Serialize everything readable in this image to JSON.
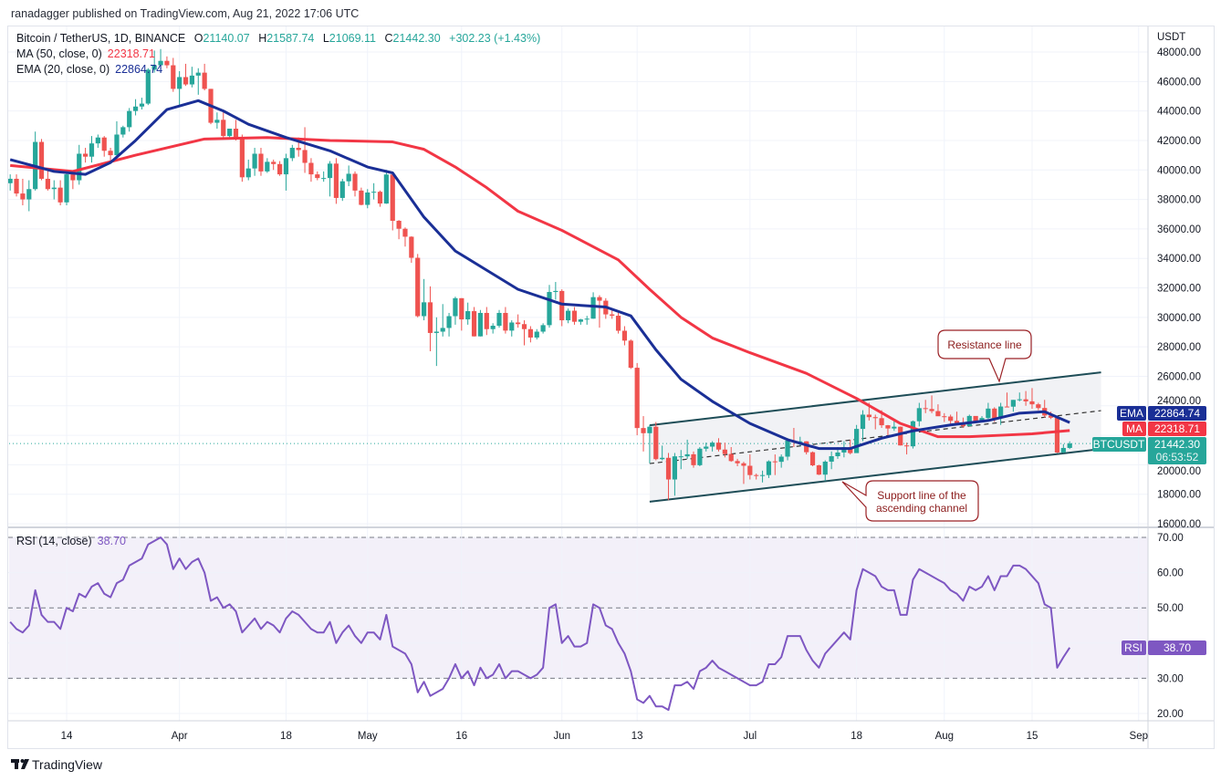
{
  "header": {
    "publisher_line": "ranadagger published on TradingView.com, Aug 21, 2022 17:06 UTC"
  },
  "legend": {
    "symbol": "Bitcoin / TetherUS, 1D, BINANCE",
    "open_label": "O",
    "open": "21140.07",
    "high_label": "H",
    "high": "21587.74",
    "low_label": "L",
    "low": "21069.11",
    "close_label": "C",
    "close": "21442.30",
    "change": "+302.23 (+1.43%)",
    "ma_label": "MA (50, close, 0)",
    "ma_value": "22318.71",
    "ema_label": "EMA (20, close, 0)",
    "ema_value": "22864.74"
  },
  "rsi_legend": {
    "label": "RSI (14, close)",
    "value": "38.70"
  },
  "price_axis": {
    "currency": "USDT",
    "ticks": [
      "48000.00",
      "46000.00",
      "44000.00",
      "42000.00",
      "40000.00",
      "38000.00",
      "36000.00",
      "34000.00",
      "32000.00",
      "30000.00",
      "28000.00",
      "26000.00",
      "24000.00",
      "20000.00",
      "18000.00",
      "16000.00"
    ]
  },
  "rsi_axis": {
    "ticks": [
      "70.00",
      "60.00",
      "50.00",
      "30.00",
      "20.00"
    ]
  },
  "time_axis": {
    "labels": [
      {
        "text": "14",
        "date": "2022-03-14"
      },
      {
        "text": "Apr",
        "date": "2022-04-01"
      },
      {
        "text": "18",
        "date": "2022-04-18"
      },
      {
        "text": "May",
        "date": "2022-05-01"
      },
      {
        "text": "16",
        "date": "2022-05-16"
      },
      {
        "text": "Jun",
        "date": "2022-06-01"
      },
      {
        "text": "13",
        "date": "2022-06-13"
      },
      {
        "text": "Jul",
        "date": "2022-07-01"
      },
      {
        "text": "18",
        "date": "2022-07-18"
      },
      {
        "text": "Aug",
        "date": "2022-08-01"
      },
      {
        "text": "15",
        "date": "2022-08-15"
      },
      {
        "text": "Sep",
        "date": "2022-09-01"
      }
    ]
  },
  "badges": {
    "ema": {
      "label": "EMA",
      "value": "22864.74"
    },
    "ma": {
      "label": "MA",
      "value": "22318.71"
    },
    "price": {
      "label": "BTCUSDT",
      "value": "21442.30",
      "countdown": "06:53:52"
    },
    "rsi": {
      "label": "RSI",
      "value": "38.70"
    }
  },
  "annotations": {
    "resistance": "Resistance line",
    "support_line1": "Support line of the",
    "support_line2": "ascending channel"
  },
  "footer": {
    "brand": "TradingView"
  },
  "colors": {
    "up": "#26a69a",
    "down": "#ef5350",
    "ma50": "#f23645",
    "ema20": "#1a2f96",
    "rsi": "#7e57c2",
    "channel": "#1e4d57",
    "annotation": "#9b2226"
  },
  "chart_data": {
    "type": "candlestick",
    "symbol": "BTCUSDT",
    "interval": "1D",
    "ylim": [
      16000,
      49000
    ],
    "grid": true,
    "candles": {
      "start_date": "2022-03-05",
      "open": [
        39100,
        39400,
        38400,
        38000,
        38700,
        41900,
        39400,
        38700,
        38800,
        37800,
        39700,
        39300,
        41100,
        40900,
        41800,
        42200,
        41300,
        41000,
        42400,
        42900,
        44000,
        44300,
        44500,
        46800,
        47100,
        47400,
        47100,
        45500,
        46300,
        45800,
        46400,
        46600,
        45500,
        43200,
        43400,
        42300,
        42800,
        42200,
        39500,
        40100,
        41100,
        39900,
        40550,
        40400,
        39700,
        40800,
        41500,
        41350,
        40480,
        39700,
        39450,
        39450,
        40430,
        38100,
        39230,
        39740,
        38600,
        37630,
        38470,
        38520,
        37720,
        39690,
        36550,
        36010,
        35470,
        34040,
        30080,
        31020,
        28940,
        29030,
        29280,
        30080,
        31300,
        29860,
        30420,
        28710,
        30300,
        29200,
        29430,
        30300,
        29100,
        29650,
        29540,
        29200,
        28630,
        29030,
        29470,
        31720,
        31790,
        29800,
        30450,
        29700,
        29860,
        29910,
        31370,
        31130,
        30200,
        30110,
        29090,
        28420,
        26580,
        22490,
        22140,
        22580,
        20380,
        20470,
        19000,
        20570,
        20570,
        20710,
        19970,
        21090,
        21230,
        21500,
        21030,
        20730,
        20250,
        20100,
        19930,
        19300,
        19240,
        19300,
        20230,
        20200,
        20550,
        21640,
        21590,
        21590,
        20850,
        19960,
        19330,
        20210,
        20580,
        20830,
        21190,
        20790,
        22430,
        23400,
        23230,
        23160,
        22680,
        22460,
        22580,
        21310,
        21250,
        22950,
        23840,
        23780,
        23640,
        23290,
        23270,
        22980,
        22820,
        22620,
        23310,
        22950,
        23170,
        23810,
        23150,
        23950,
        23940,
        24400,
        24440,
        24300,
        24100,
        23850,
        23340,
        23190,
        20830,
        21140.07
      ],
      "high": [
        39700,
        39700,
        39400,
        39300,
        42600,
        42100,
        40000,
        39300,
        39300,
        39900,
        39900,
        41700,
        41500,
        42300,
        42400,
        42300,
        41500,
        43300,
        43000,
        44200,
        44800,
        44900,
        46900,
        48100,
        48200,
        47700,
        47600,
        46700,
        47200,
        47000,
        46900,
        47200,
        45500,
        43900,
        43900,
        42800,
        43400,
        42400,
        40700,
        41500,
        41500,
        40800,
        40700,
        40600,
        41100,
        41700,
        42200,
        42900,
        40800,
        39900,
        39900,
        40600,
        40800,
        39400,
        40300,
        39900,
        38800,
        38700,
        39100,
        38600,
        40000,
        39800,
        36600,
        36100,
        35500,
        34300,
        32600,
        32100,
        30000,
        30900,
        30300,
        31400,
        31300,
        31000,
        30700,
        30500,
        30700,
        29600,
        30500,
        30700,
        29800,
        30200,
        29800,
        29400,
        29200,
        29600,
        32200,
        32400,
        31900,
        30600,
        30700,
        29900,
        30100,
        31700,
        31500,
        31300,
        30600,
        30300,
        29400,
        28500,
        26900,
        23300,
        22700,
        22900,
        21300,
        20800,
        20800,
        21000,
        21700,
        20900,
        21200,
        21500,
        21600,
        21800,
        21500,
        21200,
        20400,
        20200,
        20700,
        19400,
        19600,
        20300,
        20700,
        20700,
        21800,
        22500,
        21900,
        21600,
        20900,
        20000,
        20300,
        20900,
        21200,
        21600,
        21700,
        22700,
        23700,
        24200,
        23400,
        23700,
        22700,
        23000,
        22600,
        21500,
        23000,
        24200,
        24400,
        24700,
        24100,
        23500,
        23400,
        23600,
        23200,
        23400,
        23300,
        23300,
        24200,
        23900,
        24200,
        24900,
        24400,
        24900,
        25000,
        25200,
        24200,
        24400,
        23600,
        23200,
        21400,
        21587.74
      ],
      "low": [
        38600,
        38200,
        37600,
        37200,
        38600,
        39300,
        38600,
        38000,
        37600,
        37600,
        38700,
        39000,
        40500,
        40500,
        41500,
        40900,
        40500,
        40900,
        42200,
        42600,
        43700,
        44100,
        44400,
        46600,
        46600,
        46900,
        45300,
        44300,
        45700,
        45600,
        45100,
        45400,
        43100,
        42800,
        42200,
        42100,
        42000,
        39200,
        39300,
        39600,
        39600,
        39800,
        40000,
        39600,
        38600,
        40600,
        40900,
        39800,
        39200,
        39300,
        39200,
        38200,
        37700,
        37900,
        38900,
        38200,
        37600,
        37400,
        38000,
        37500,
        37700,
        35900,
        35300,
        34800,
        33700,
        30000,
        29800,
        27700,
        26700,
        28700,
        28700,
        29500,
        29100,
        29500,
        28700,
        28700,
        28800,
        28900,
        29300,
        28900,
        28700,
        29300,
        28100,
        28300,
        28500,
        28900,
        29300,
        31200,
        29400,
        29600,
        29500,
        29500,
        29500,
        29900,
        29300,
        29900,
        29900,
        28900,
        28100,
        26500,
        22000,
        20900,
        20100,
        20300,
        20300,
        17600,
        17900,
        19700,
        20400,
        19800,
        19900,
        20900,
        20900,
        20900,
        20500,
        20200,
        19900,
        18700,
        19000,
        19000,
        18800,
        19100,
        19300,
        19800,
        20300,
        21200,
        21300,
        20700,
        19900,
        19300,
        18900,
        19700,
        20400,
        20500,
        20700,
        20800,
        21600,
        23000,
        22400,
        22500,
        22000,
        22300,
        21300,
        20700,
        21100,
        22600,
        23500,
        23500,
        23300,
        22900,
        22700,
        22700,
        22500,
        22600,
        22900,
        22900,
        23100,
        22900,
        22700,
        23900,
        23600,
        24300,
        24000,
        23800,
        23700,
        23200,
        23100,
        20800,
        20800,
        21069.11
      ],
      "close": [
        39400,
        38400,
        38000,
        38700,
        41900,
        39400,
        38700,
        38800,
        37800,
        39700,
        39300,
        41100,
        40900,
        41800,
        42200,
        41300,
        41000,
        42400,
        42900,
        44000,
        44300,
        44500,
        46800,
        47100,
        47400,
        47100,
        45500,
        46300,
        45800,
        46400,
        46600,
        45500,
        43200,
        43400,
        42300,
        42800,
        42200,
        39500,
        40100,
        41100,
        39900,
        40550,
        40400,
        39700,
        40800,
        41500,
        41350,
        40480,
        39700,
        39450,
        39450,
        40430,
        38100,
        39230,
        39740,
        38600,
        37630,
        38470,
        38520,
        37720,
        39690,
        36550,
        36010,
        35470,
        34040,
        30080,
        31020,
        28940,
        29030,
        29280,
        30080,
        31300,
        29860,
        30420,
        28710,
        30300,
        29200,
        29430,
        30300,
        29100,
        29650,
        29540,
        29200,
        28630,
        29030,
        29470,
        31720,
        31790,
        29800,
        30450,
        29700,
        29860,
        29910,
        31370,
        31130,
        30200,
        30110,
        29090,
        28420,
        26580,
        22490,
        22140,
        22580,
        20380,
        20470,
        19000,
        20570,
        20570,
        20710,
        19970,
        21090,
        21230,
        21500,
        21030,
        20730,
        20250,
        20100,
        19930,
        19300,
        19240,
        19300,
        20230,
        20200,
        20550,
        21640,
        21590,
        21590,
        20850,
        19960,
        19330,
        20210,
        20580,
        20830,
        21190,
        20790,
        22430,
        23400,
        23230,
        23160,
        22680,
        22460,
        22580,
        21310,
        21250,
        22950,
        23840,
        23780,
        23640,
        23290,
        23270,
        22980,
        22820,
        22620,
        23310,
        22950,
        23170,
        23810,
        23150,
        23950,
        23940,
        24400,
        24440,
        24300,
        24100,
        23850,
        23340,
        23190,
        20830,
        21140,
        21442.3
      ]
    },
    "ema20": [
      [
        "2022-03-05",
        40700
      ],
      [
        "2022-03-12",
        39900
      ],
      [
        "2022-03-17",
        39700
      ],
      [
        "2022-03-21",
        40500
      ],
      [
        "2022-03-25",
        42000
      ],
      [
        "2022-03-30",
        44100
      ],
      [
        "2022-04-04",
        44700
      ],
      [
        "2022-04-08",
        44000
      ],
      [
        "2022-04-12",
        43100
      ],
      [
        "2022-04-18",
        42200
      ],
      [
        "2022-04-25",
        41300
      ],
      [
        "2022-05-01",
        40200
      ],
      [
        "2022-05-05",
        39800
      ],
      [
        "2022-05-10",
        36800
      ],
      [
        "2022-05-15",
        34500
      ],
      [
        "2022-05-20",
        33200
      ],
      [
        "2022-05-25",
        31900
      ],
      [
        "2022-06-01",
        30900
      ],
      [
        "2022-06-08",
        30700
      ],
      [
        "2022-06-12",
        30100
      ],
      [
        "2022-06-16",
        27800
      ],
      [
        "2022-06-20",
        25800
      ],
      [
        "2022-06-25",
        24300
      ],
      [
        "2022-07-01",
        22800
      ],
      [
        "2022-07-07",
        21700
      ],
      [
        "2022-07-12",
        21100
      ],
      [
        "2022-07-17",
        21100
      ],
      [
        "2022-07-22",
        21800
      ],
      [
        "2022-07-27",
        22300
      ],
      [
        "2022-08-02",
        22700
      ],
      [
        "2022-08-08",
        23000
      ],
      [
        "2022-08-13",
        23500
      ],
      [
        "2022-08-17",
        23600
      ],
      [
        "2022-08-21",
        22864.74
      ]
    ],
    "ma50": [
      [
        "2022-03-05",
        40300
      ],
      [
        "2022-03-15",
        39900
      ],
      [
        "2022-03-25",
        41000
      ],
      [
        "2022-04-05",
        42100
      ],
      [
        "2022-04-15",
        42200
      ],
      [
        "2022-04-25",
        42000
      ],
      [
        "2022-05-05",
        41900
      ],
      [
        "2022-05-10",
        41400
      ],
      [
        "2022-05-15",
        40200
      ],
      [
        "2022-05-20",
        38800
      ],
      [
        "2022-05-25",
        37200
      ],
      [
        "2022-06-01",
        35900
      ],
      [
        "2022-06-10",
        33900
      ],
      [
        "2022-06-15",
        31900
      ],
      [
        "2022-06-20",
        30000
      ],
      [
        "2022-06-25",
        28600
      ],
      [
        "2022-07-01",
        27600
      ],
      [
        "2022-07-10",
        26200
      ],
      [
        "2022-07-18",
        24500
      ],
      [
        "2022-07-25",
        22800
      ],
      [
        "2022-07-31",
        21900
      ],
      [
        "2022-08-05",
        21900
      ],
      [
        "2022-08-10",
        22000
      ],
      [
        "2022-08-15",
        22100
      ],
      [
        "2022-08-21",
        22318.71
      ]
    ],
    "channel": {
      "upper": [
        [
          "2022-06-15",
          22680
        ],
        [
          "2022-08-26",
          26270
        ]
      ],
      "middle": [
        [
          "2022-06-15",
          20080
        ],
        [
          "2022-08-26",
          23670
        ]
      ],
      "lower": [
        [
          "2022-06-15",
          17490
        ],
        [
          "2022-08-26",
          21070
        ]
      ]
    },
    "last_price": 21442.3,
    "rsi": {
      "period": 14,
      "ylim": [
        15,
        75
      ],
      "bands": [
        30,
        50,
        70
      ],
      "values": [
        46,
        44,
        43,
        45,
        55,
        48,
        46,
        46,
        44,
        50,
        49,
        54,
        53,
        56,
        57,
        54,
        53,
        57,
        58,
        62,
        63,
        64,
        68,
        69,
        70,
        68,
        61,
        64,
        61,
        63,
        64,
        60,
        52,
        53,
        50,
        51,
        49,
        43,
        45,
        47,
        44,
        46,
        45,
        43,
        47,
        49,
        48,
        46,
        44,
        43,
        43,
        46,
        40,
        43,
        45,
        42,
        40,
        43,
        43,
        41,
        48,
        39,
        38,
        37,
        34,
        26,
        29,
        25,
        26,
        27,
        30,
        34,
        30,
        32,
        28,
        33,
        30,
        31,
        34,
        30,
        32,
        32,
        31,
        30,
        31,
        33,
        50,
        51,
        40,
        42,
        39,
        39,
        40,
        51,
        50,
        45,
        44,
        40,
        37,
        32,
        24,
        23,
        25,
        22,
        22,
        21,
        28,
        28,
        29,
        27,
        32,
        33,
        35,
        33,
        32,
        31,
        30,
        29,
        28,
        28,
        29,
        34,
        34,
        36,
        42,
        42,
        42,
        38,
        35,
        33,
        37,
        39,
        41,
        43,
        41,
        55,
        61,
        60,
        59,
        56,
        55,
        55,
        48,
        48,
        58,
        61,
        60,
        59,
        58,
        57,
        55,
        54,
        52,
        56,
        55,
        56,
        59,
        55,
        59,
        59,
        62,
        62,
        61,
        59,
        57,
        51,
        50,
        33,
        36,
        38.7
      ]
    }
  }
}
